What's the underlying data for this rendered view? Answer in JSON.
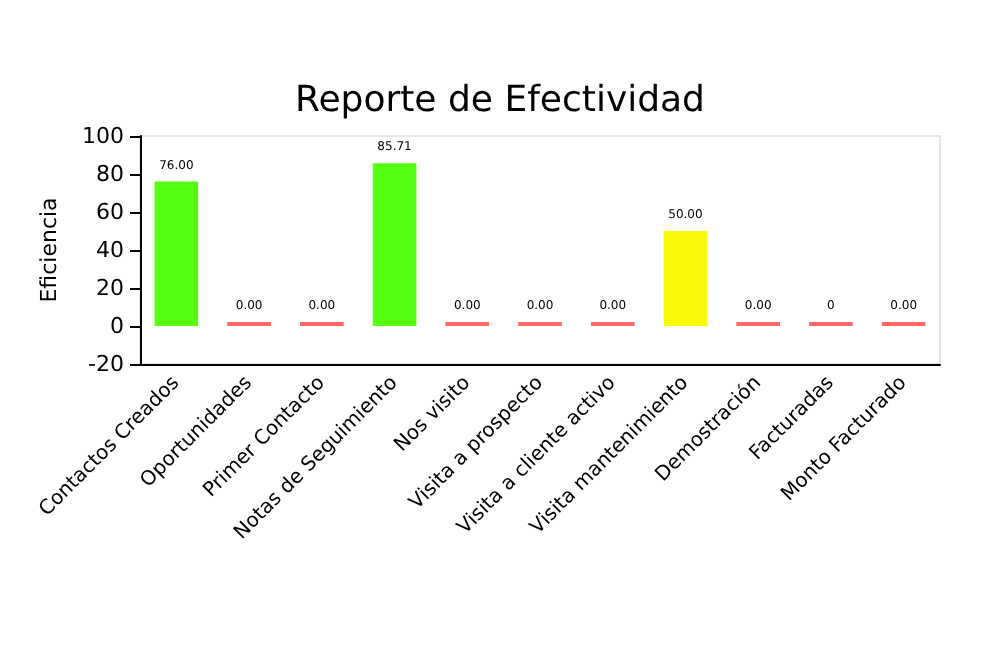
{
  "chart_data": {
    "type": "bar",
    "title": "Reporte de Efectividad",
    "ylabel": "Eficiencia",
    "categories": [
      "Contactos Creados",
      "Oportunidades",
      "Primer Contacto",
      "Notas de Seguimiento",
      "Nos visito",
      "Visita a prospecto",
      "Visita a cliente activo",
      "Visita mantenimiento",
      "Demostración",
      "Facturadas",
      "Monto Facturado"
    ],
    "values": [
      76,
      0,
      0,
      85.71,
      0,
      0,
      0,
      50,
      0,
      0,
      0
    ],
    "value_labels": [
      "76.00",
      "0.00",
      "0.00",
      "85.71",
      "0.00",
      "0.00",
      "0.00",
      "50.00",
      "0.00",
      "0",
      "0.00"
    ],
    "colors": [
      "#55ff11",
      "#ff6666",
      "#ff6666",
      "#55ff11",
      "#ff6666",
      "#ff6666",
      "#ff6666",
      "#f8f80a",
      "#ff6666",
      "#ff6666",
      "#ff6666"
    ],
    "ylim": [
      -20,
      100
    ],
    "yticks": [
      -20,
      0,
      20,
      40,
      60,
      80,
      100
    ],
    "grid": false
  }
}
